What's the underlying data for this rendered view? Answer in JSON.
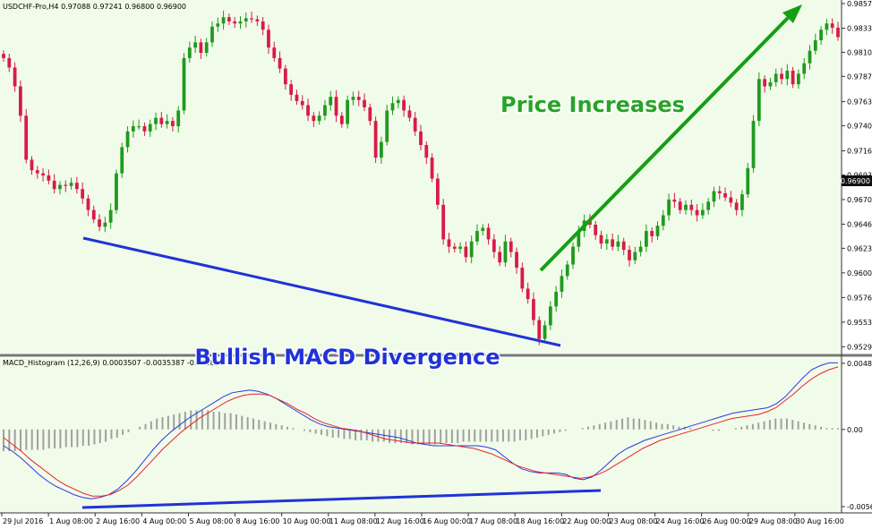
{
  "chart_data": [
    {
      "type": "candlestick",
      "symbol_line": "USDCHF-Pro,H4  0.97088 0.97241 0.96800 0.96900",
      "current_price_label": "0.96900",
      "ylim": [
        0.9529,
        0.9857
      ],
      "y_ticks": [
        "0.98570",
        "0.98335",
        "0.98105",
        "0.97875",
        "0.97635",
        "0.97405",
        "0.97165",
        "0.96935",
        "0.96700",
        "0.96465",
        "0.96235",
        "0.96000",
        "0.95765",
        "0.95530",
        "0.95295"
      ],
      "colors": {
        "bull": "#1f9a1f",
        "bear": "#d81b47",
        "background": "#f1fbe9",
        "arrow": "#12a012",
        "trendline": "#1f33d6"
      },
      "candles_close": [
        0.9805,
        0.9796,
        0.9778,
        0.975,
        0.9708,
        0.9698,
        0.9695,
        0.9693,
        0.9688,
        0.968,
        0.9684,
        0.9683,
        0.9686,
        0.968,
        0.9671,
        0.966,
        0.9651,
        0.9644,
        0.9648,
        0.966,
        0.9695,
        0.972,
        0.9735,
        0.974,
        0.974,
        0.9735,
        0.9742,
        0.9748,
        0.9742,
        0.9745,
        0.974,
        0.9755,
        0.9805,
        0.9815,
        0.982,
        0.981,
        0.982,
        0.9835,
        0.9838,
        0.9844,
        0.984,
        0.9838,
        0.984,
        0.9843,
        0.9842,
        0.984,
        0.9832,
        0.9815,
        0.9805,
        0.9795,
        0.978,
        0.977,
        0.9764,
        0.976,
        0.975,
        0.9745,
        0.975,
        0.976,
        0.9768,
        0.975,
        0.9742,
        0.9765,
        0.9768,
        0.9765,
        0.9758,
        0.9745,
        0.971,
        0.9725,
        0.9755,
        0.9762,
        0.9765,
        0.9755,
        0.9748,
        0.9735,
        0.9722,
        0.971,
        0.969,
        0.9665,
        0.9632,
        0.9625,
        0.9623,
        0.9625,
        0.9615,
        0.963,
        0.964,
        0.9643,
        0.9632,
        0.962,
        0.961,
        0.963,
        0.962,
        0.9605,
        0.9585,
        0.9575,
        0.9555,
        0.9537,
        0.955,
        0.9568,
        0.9582,
        0.9597,
        0.9608,
        0.9625,
        0.964,
        0.965,
        0.9646,
        0.9636,
        0.9628,
        0.9632,
        0.9625,
        0.963,
        0.9622,
        0.9612,
        0.962,
        0.9625,
        0.964,
        0.9635,
        0.9645,
        0.9655,
        0.967,
        0.9668,
        0.966,
        0.9665,
        0.966,
        0.9655,
        0.966,
        0.9668,
        0.9678,
        0.9676,
        0.9672,
        0.9667,
        0.966,
        0.9675,
        0.97,
        0.9745,
        0.9785,
        0.9778,
        0.9782,
        0.979,
        0.9785,
        0.9793,
        0.978,
        0.979,
        0.98,
        0.9812,
        0.9822,
        0.9832,
        0.9838,
        0.9834,
        0.9825
      ],
      "series": [
        {
          "name": "MACD_Histogram (12,26,9) 0.0003507 -0.0035387 -0.003889",
          "values": [
            -0.0016,
            -0.0016,
            -0.0016,
            -0.0016,
            -0.0015,
            -0.0015,
            -0.0015,
            -0.0015,
            -0.0014,
            -0.0014,
            -0.0014,
            -0.0013,
            -0.0013,
            -0.0013,
            -0.0012,
            -0.0012,
            -0.0011,
            -0.001,
            -0.0009,
            -0.0007,
            -0.0006,
            -0.0004,
            -0.0002,
            0.0,
            0.0002,
            0.0004,
            0.0006,
            0.0008,
            0.0009,
            0.001,
            0.0011,
            0.0012,
            0.0013,
            0.0014,
            0.0014,
            0.0014,
            0.0014,
            0.0013,
            0.0013,
            0.0012,
            0.0012,
            0.0011,
            0.001,
            0.0009,
            0.0008,
            0.0007,
            0.0006,
            0.0005,
            0.0004,
            0.0003,
            0.0002,
            0.0001,
            0.0,
            -0.0001,
            -0.0002,
            -0.0003,
            -0.0004,
            -0.0005,
            -0.0006,
            -0.0006,
            -0.0007,
            -0.0007,
            -0.0008,
            -0.0008,
            -0.0008,
            -0.0009,
            -0.0009,
            -0.0009,
            -0.001,
            -0.001,
            -0.001,
            -0.001,
            -0.0011,
            -0.0011,
            -0.0011,
            -0.0011,
            -0.0011,
            -0.001,
            -0.001,
            -0.001,
            -0.001,
            -0.0009,
            -0.0009,
            -0.0009,
            -0.0009,
            -0.0009,
            -0.0009,
            -0.0009,
            -0.0009,
            -0.0009,
            -0.0009,
            -0.0008,
            -0.0008,
            -0.0007,
            -0.0006,
            -0.0005,
            -0.0004,
            -0.0003,
            -0.0002,
            -0.0001,
            0.0,
            0.0,
            0.0001,
            0.0002,
            0.0003,
            0.0004,
            0.0005,
            0.0006,
            0.0007,
            0.0008,
            0.0009,
            0.0008,
            0.0008,
            0.0007,
            0.0006,
            0.0005,
            0.0004,
            0.0004,
            0.0003,
            0.0002,
            0.0002,
            0.0001,
            0.0,
            0.0,
            0.0,
            -0.0001,
            -0.0001,
            0.0,
            0.0,
            0.0001,
            0.0002,
            0.0003,
            0.0004,
            0.0005,
            0.0006,
            0.0007,
            0.0008,
            0.0008,
            0.0008,
            0.0007,
            0.0006,
            0.0005,
            0.0004,
            0.0003,
            0.0002,
            0.0001,
            0.0001,
            0.0001
          ]
        },
        {
          "name": "MACD",
          "values": [
            -0.0012,
            -0.0016,
            -0.0021,
            -0.0027,
            -0.0033,
            -0.0038,
            -0.0042,
            -0.0045,
            -0.0048,
            -0.005,
            -0.0051,
            -0.005,
            -0.0048,
            -0.0044,
            -0.0038,
            -0.0031,
            -0.0023,
            -0.0015,
            -0.0008,
            -0.0002,
            0.0003,
            0.0008,
            0.0012,
            0.0016,
            0.002,
            0.0024,
            0.0027,
            0.0028,
            0.0029,
            0.0028,
            0.0026,
            0.0023,
            0.0019,
            0.0015,
            0.0011,
            0.0007,
            0.0004,
            0.0002,
            0.0001,
            0.0,
            -0.0001,
            -0.0002,
            -0.0003,
            -0.0004,
            -0.0005,
            -0.0006,
            -0.0008,
            -0.001,
            -0.0011,
            -0.0012,
            -0.0012,
            -0.0012,
            -0.0012,
            -0.0012,
            -0.0012,
            -0.0013,
            -0.0015,
            -0.002,
            -0.0025,
            -0.0029,
            -0.0031,
            -0.0032,
            -0.0032,
            -0.0032,
            -0.0033,
            -0.0036,
            -0.0037,
            -0.0035,
            -0.003,
            -0.0024,
            -0.0018,
            -0.0014,
            -0.0011,
            -0.0008,
            -0.0006,
            -0.0004,
            -0.0002,
            0.0,
            0.0002,
            0.0004,
            0.0006,
            0.0008,
            0.001,
            0.0012,
            0.0013,
            0.0014,
            0.0015,
            0.0016,
            0.0019,
            0.0024,
            0.0031,
            0.0038,
            0.0044,
            0.0047,
            0.0049,
            0.0049
          ]
        },
        {
          "name": "Signal",
          "values": [
            -0.0006,
            -0.0011,
            -0.0016,
            -0.0022,
            -0.0027,
            -0.0032,
            -0.0037,
            -0.0041,
            -0.0044,
            -0.0047,
            -0.0049,
            -0.0049,
            -0.0048,
            -0.0045,
            -0.0041,
            -0.0035,
            -0.0028,
            -0.0021,
            -0.0014,
            -0.0008,
            -0.0002,
            0.0003,
            0.0008,
            0.0012,
            0.0016,
            0.002,
            0.0023,
            0.0025,
            0.0026,
            0.0026,
            0.0025,
            0.0022,
            0.0019,
            0.0015,
            0.0012,
            0.0008,
            0.0005,
            0.0003,
            0.0001,
            0.0,
            -0.0001,
            -0.0003,
            -0.0005,
            -0.0007,
            -0.0008,
            -0.0009,
            -0.001,
            -0.001,
            -0.001,
            -0.001,
            -0.0011,
            -0.0012,
            -0.0013,
            -0.0014,
            -0.0016,
            -0.0018,
            -0.0021,
            -0.0024,
            -0.0027,
            -0.0029,
            -0.0031,
            -0.0032,
            -0.0033,
            -0.0034,
            -0.0035,
            -0.0036,
            -0.0035,
            -0.0033,
            -0.003,
            -0.0026,
            -0.0022,
            -0.0018,
            -0.0014,
            -0.0011,
            -0.0008,
            -0.0006,
            -0.0004,
            -0.0002,
            0.0,
            0.0002,
            0.0004,
            0.0006,
            0.0008,
            0.0009,
            0.001,
            0.0011,
            0.0013,
            0.0016,
            0.0021,
            0.0026,
            0.0032,
            0.0037,
            0.0041,
            0.0044,
            0.0046
          ]
        }
      ],
      "macd_ylim": [
        -0.00568,
        0.00486
      ],
      "macd_y_ticks": [
        "0.004869",
        "0.00",
        "-0.00568"
      ],
      "x_ticks": [
        "29 Jul 2016",
        "1 Aug 08:00",
        "2 Aug 16:00",
        "4 Aug 00:00",
        "5 Aug 08:00",
        "8 Aug 16:00",
        "10 Aug 00:00",
        "11 Aug 08:00",
        "12 Aug 16:00",
        "16 Aug 00:00",
        "17 Aug 08:00",
        "18 Aug 16:00",
        "22 Aug 00:00",
        "23 Aug 08:00",
        "24 Aug 16:00",
        "26 Aug 00:00",
        "29 Aug 08:00",
        "30 Aug 16:00"
      ],
      "annotations": {
        "price_increases": "Price Increases",
        "divergence": "Bullish MACD Divergence"
      }
    }
  ]
}
